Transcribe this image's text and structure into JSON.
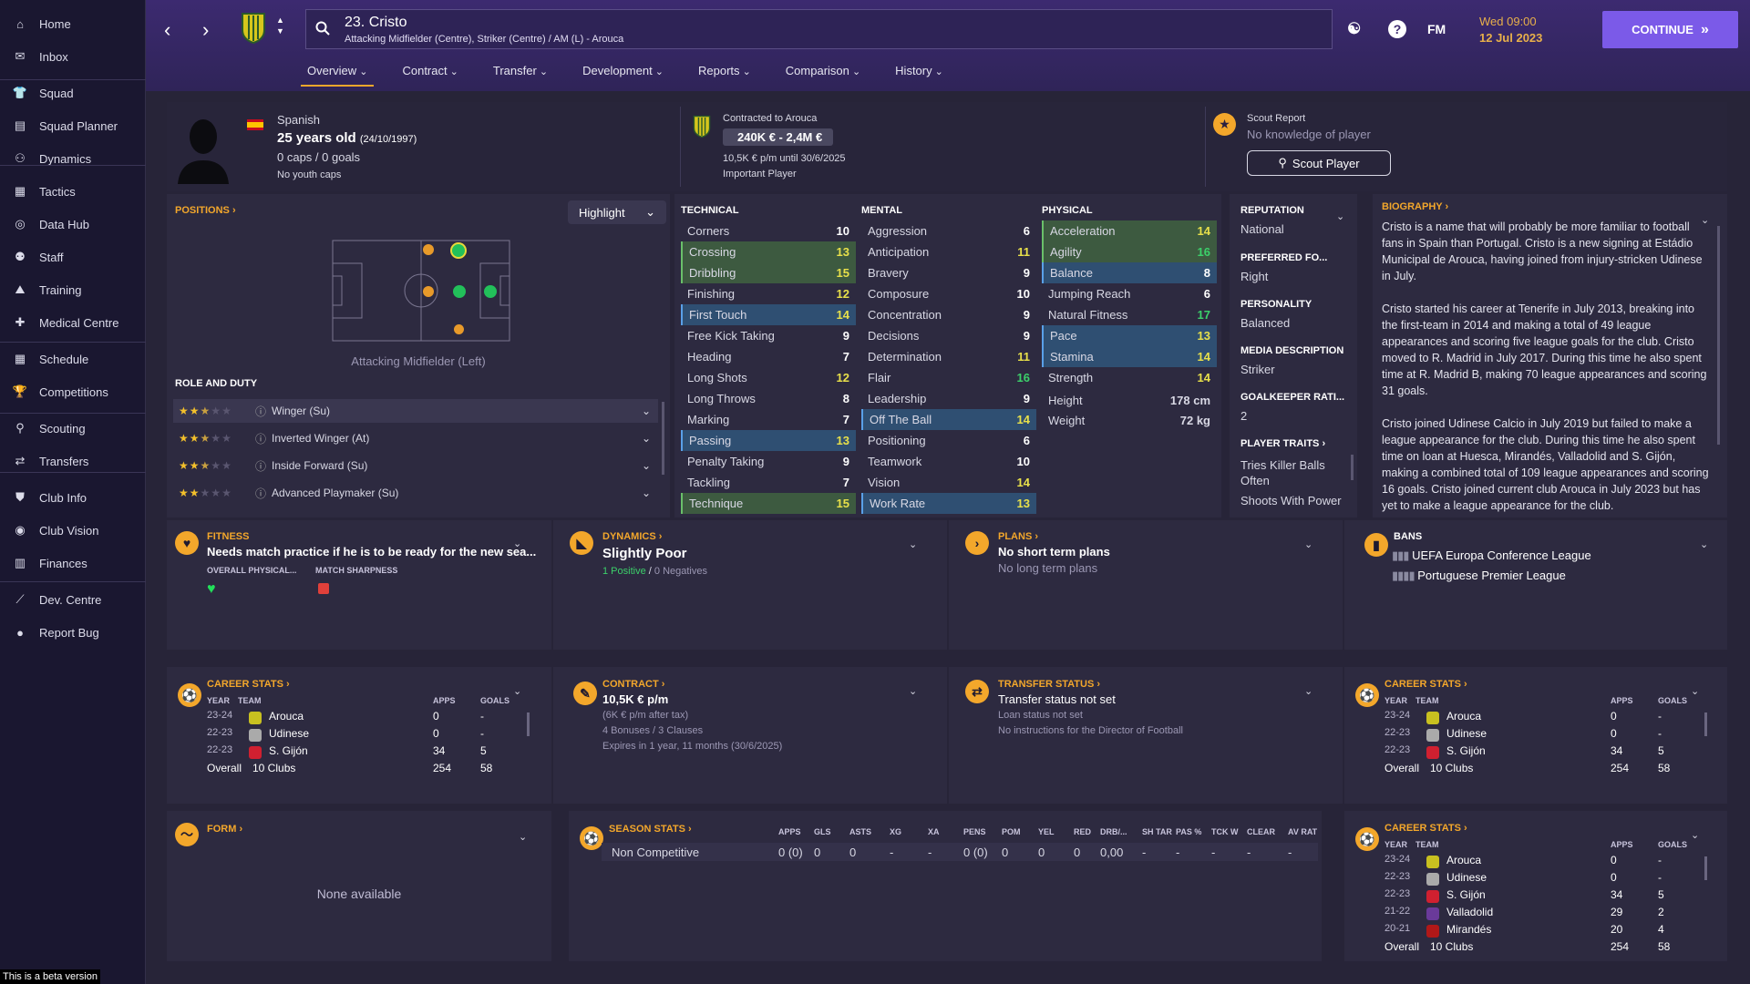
{
  "sidebar": {
    "items": [
      {
        "label": "Home",
        "icon": "home-icon"
      },
      {
        "label": "Inbox",
        "icon": "inbox-icon"
      },
      {
        "label": "Squad",
        "icon": "shirt-icon"
      },
      {
        "label": "Squad Planner",
        "icon": "planner-icon"
      },
      {
        "label": "Dynamics",
        "icon": "people-icon"
      },
      {
        "label": "Tactics",
        "icon": "tactics-icon"
      },
      {
        "label": "Data Hub",
        "icon": "data-icon"
      },
      {
        "label": "Staff",
        "icon": "staff-icon"
      },
      {
        "label": "Training",
        "icon": "training-icon"
      },
      {
        "label": "Medical Centre",
        "icon": "medical-icon"
      },
      {
        "label": "Schedule",
        "icon": "calendar-icon"
      },
      {
        "label": "Competitions",
        "icon": "trophy-icon"
      },
      {
        "label": "Scouting",
        "icon": "search-icon"
      },
      {
        "label": "Transfers",
        "icon": "transfer-icon"
      },
      {
        "label": "Club Info",
        "icon": "shield-icon"
      },
      {
        "label": "Club Vision",
        "icon": "vision-icon"
      },
      {
        "label": "Finances",
        "icon": "finance-icon"
      },
      {
        "label": "Dev. Centre",
        "icon": "dev-icon"
      },
      {
        "label": "Report Bug",
        "icon": "bug-icon"
      }
    ],
    "beta_notice": "This is a beta version"
  },
  "header": {
    "player_title": "23. Cristo",
    "player_subtitle": "Attacking Midfielder (Centre), Striker (Centre) / AM (L) - Arouca",
    "fm_label": "FM",
    "date_line1": "Wed 09:00",
    "date_line2": "12 Jul 2023",
    "continue_label": "CONTINUE",
    "tabs": [
      "Overview",
      "Contract",
      "Transfer",
      "Development",
      "Reports",
      "Comparison",
      "History"
    ]
  },
  "profile": {
    "nationality": "Spanish",
    "age": "25 years old",
    "dob": "(24/10/1997)",
    "caps": "0 caps / 0 goals",
    "youth_caps": "No youth caps",
    "contract_title": "Contracted to Arouca",
    "value": "240K € - 2,4M €",
    "wage": "10,5K € p/m until 30/6/2025",
    "status": "Important Player",
    "scout_title": "Scout Report",
    "scout_sub": "No knowledge of player",
    "scout_button": "Scout Player"
  },
  "positions": {
    "title": "POSITIONS",
    "highlight": "Highlight",
    "position_label": "Attacking Midfielder (Left)",
    "role_title": "ROLE AND DUTY",
    "roles": [
      {
        "label": "Winger (Su)",
        "stars": 2.5
      },
      {
        "label": "Inverted Winger (At)",
        "stars": 2.5
      },
      {
        "label": "Inside Forward (Su)",
        "stars": 2.5
      },
      {
        "label": "Advanced Playmaker (Su)",
        "stars": 2
      }
    ]
  },
  "attributes": {
    "technical_title": "TECHNICAL",
    "mental_title": "MENTAL",
    "physical_title": "PHYSICAL",
    "technical": [
      {
        "name": "Corners",
        "value": "10",
        "hl": ""
      },
      {
        "name": "Crossing",
        "value": "13",
        "hl": "green"
      },
      {
        "name": "Dribbling",
        "value": "15",
        "hl": "green"
      },
      {
        "name": "Finishing",
        "value": "12",
        "hl": ""
      },
      {
        "name": "First Touch",
        "value": "14",
        "hl": "blue"
      },
      {
        "name": "Free Kick Taking",
        "value": "9",
        "hl": ""
      },
      {
        "name": "Heading",
        "value": "7",
        "hl": ""
      },
      {
        "name": "Long Shots",
        "value": "12",
        "hl": ""
      },
      {
        "name": "Long Throws",
        "value": "8",
        "hl": ""
      },
      {
        "name": "Marking",
        "value": "7",
        "hl": ""
      },
      {
        "name": "Passing",
        "value": "13",
        "hl": "blue"
      },
      {
        "name": "Penalty Taking",
        "value": "9",
        "hl": ""
      },
      {
        "name": "Tackling",
        "value": "7",
        "hl": ""
      },
      {
        "name": "Technique",
        "value": "15",
        "hl": "green"
      }
    ],
    "mental": [
      {
        "name": "Aggression",
        "value": "6",
        "hl": ""
      },
      {
        "name": "Anticipation",
        "value": "11",
        "hl": ""
      },
      {
        "name": "Bravery",
        "value": "9",
        "hl": ""
      },
      {
        "name": "Composure",
        "value": "10",
        "hl": ""
      },
      {
        "name": "Concentration",
        "value": "9",
        "hl": ""
      },
      {
        "name": "Decisions",
        "value": "9",
        "hl": ""
      },
      {
        "name": "Determination",
        "value": "11",
        "hl": ""
      },
      {
        "name": "Flair",
        "value": "16",
        "hl": ""
      },
      {
        "name": "Leadership",
        "value": "9",
        "hl": ""
      },
      {
        "name": "Off The Ball",
        "value": "14",
        "hl": "blue"
      },
      {
        "name": "Positioning",
        "value": "6",
        "hl": ""
      },
      {
        "name": "Teamwork",
        "value": "10",
        "hl": ""
      },
      {
        "name": "Vision",
        "value": "14",
        "hl": ""
      },
      {
        "name": "Work Rate",
        "value": "13",
        "hl": "blue"
      }
    ],
    "physical": [
      {
        "name": "Acceleration",
        "value": "14",
        "hl": "green"
      },
      {
        "name": "Agility",
        "value": "16",
        "hl": "green"
      },
      {
        "name": "Balance",
        "value": "8",
        "hl": "blue"
      },
      {
        "name": "Jumping Reach",
        "value": "6",
        "hl": ""
      },
      {
        "name": "Natural Fitness",
        "value": "17",
        "hl": ""
      },
      {
        "name": "Pace",
        "value": "13",
        "hl": "blue"
      },
      {
        "name": "Stamina",
        "value": "14",
        "hl": "blue"
      },
      {
        "name": "Strength",
        "value": "14",
        "hl": ""
      }
    ],
    "height_label": "Height",
    "height": "178 cm",
    "weight_label": "Weight",
    "weight": "72 kg"
  },
  "info": {
    "reputation_label": "REPUTATION",
    "reputation": "National",
    "foot_label": "PREFERRED FO...",
    "foot": "Right",
    "personality_label": "PERSONALITY",
    "personality": "Balanced",
    "media_label": "MEDIA DESCRIPTION",
    "media": "Striker",
    "gk_label": "GOALKEEPER RATI...",
    "gk": "2",
    "traits_label": "PLAYER TRAITS",
    "trait1": "Tries Killer Balls Often",
    "trait2": "Shoots With Power"
  },
  "biography": {
    "title": "BIOGRAPHY",
    "p1": "Cristo is a name that will probably be more familiar to football fans in Spain than Portugal. Cristo is a new signing at Estádio Municipal de Arouca, having joined from injury-stricken Udinese in July.",
    "p2": "Cristo started his career at Tenerife in July 2013, breaking into the first-team in 2014 and making a total of 49 league appearances and scoring five league goals for the club. Cristo moved to R. Madrid in July 2017. During this time he also spent time at R. Madrid B, making 70 league appearances and scoring 31 goals.",
    "p3": "Cristo joined Udinese Calcio in July 2019 but failed to make a league appearance for the club. During this time he also spent time on loan at Huesca, Mirandés, Valladolid and S. Gijón, making a combined total of 109 league appearances and scoring 16 goals. Cristo joined current club Arouca in July 2023 but has yet to make a league appearance for the club."
  },
  "fitness": {
    "title": "FITNESS",
    "text": "Needs match practice if he is to be ready for the new sea...",
    "col1": "OVERALL PHYSICAL...",
    "col2": "MATCH SHARPNESS"
  },
  "dynamics": {
    "title": "DYNAMICS",
    "value": "Slightly Poor",
    "positives": "1 Positive",
    "separator": "/",
    "negatives": "0 Negatives"
  },
  "plans": {
    "title": "PLANS",
    "line1": "No short term plans",
    "line2": "No long term plans"
  },
  "bans": {
    "title": "BANS",
    "items": [
      "UEFA Europa Conference League",
      "Portuguese Premier League"
    ]
  },
  "career": {
    "title": "CAREER STATS",
    "headers": [
      "YEAR",
      "TEAM",
      "APPS",
      "GOALS"
    ],
    "rows": [
      {
        "year": "23-24",
        "team": "Arouca",
        "apps": "0",
        "goals": "-",
        "color": "#c8c020"
      },
      {
        "year": "22-23",
        "team": "Udinese",
        "apps": "0",
        "goals": "-",
        "color": "#aaaaaa"
      },
      {
        "year": "22-23",
        "team": "S. Gijón",
        "apps": "34",
        "goals": "5",
        "color": "#d02030"
      },
      {
        "year": "21-22",
        "team": "Valladolid",
        "apps": "29",
        "goals": "2",
        "color": "#6a3a9a"
      },
      {
        "year": "20-21",
        "team": "Mirandés",
        "apps": "20",
        "goals": "4",
        "color": "#b01818"
      }
    ],
    "overall_label": "Overall",
    "overall_clubs": "10 Clubs",
    "overall_apps": "254",
    "overall_goals": "58"
  },
  "contract_card": {
    "title": "CONTRACT",
    "wage": "10,5K € p/m",
    "after_tax": "(6K € p/m after tax)",
    "bonuses": "4 Bonuses / 3 Clauses",
    "expires": "Expires in 1 year, 11 months (30/6/2025)"
  },
  "transfer_card": {
    "title": "TRANSFER STATUS",
    "line1": "Transfer status not set",
    "line2": "Loan status not set",
    "line3": "No instructions for the Director of Football"
  },
  "form": {
    "title": "FORM",
    "empty": "None available"
  },
  "season": {
    "title": "SEASON STATS",
    "headers": [
      "APPS",
      "GLS",
      "ASTS",
      "XG",
      "XA",
      "PENS",
      "POM",
      "YEL",
      "RED",
      "DRB/...",
      "SH TAR",
      "PAS %",
      "TCK W",
      "CLEAR",
      "AV RAT"
    ],
    "row_label": "Non Competitive",
    "row": [
      "0 (0)",
      "0",
      "0",
      "-",
      "-",
      "0 (0)",
      "0",
      "0",
      "0",
      "0,00",
      "-",
      "-",
      "-",
      "-",
      "-"
    ]
  },
  "colors": {
    "accent": "#f3a72b",
    "green_hl": "#3d5a40",
    "blue_hl": "#2f4f72",
    "button": "#7b5ae8"
  }
}
